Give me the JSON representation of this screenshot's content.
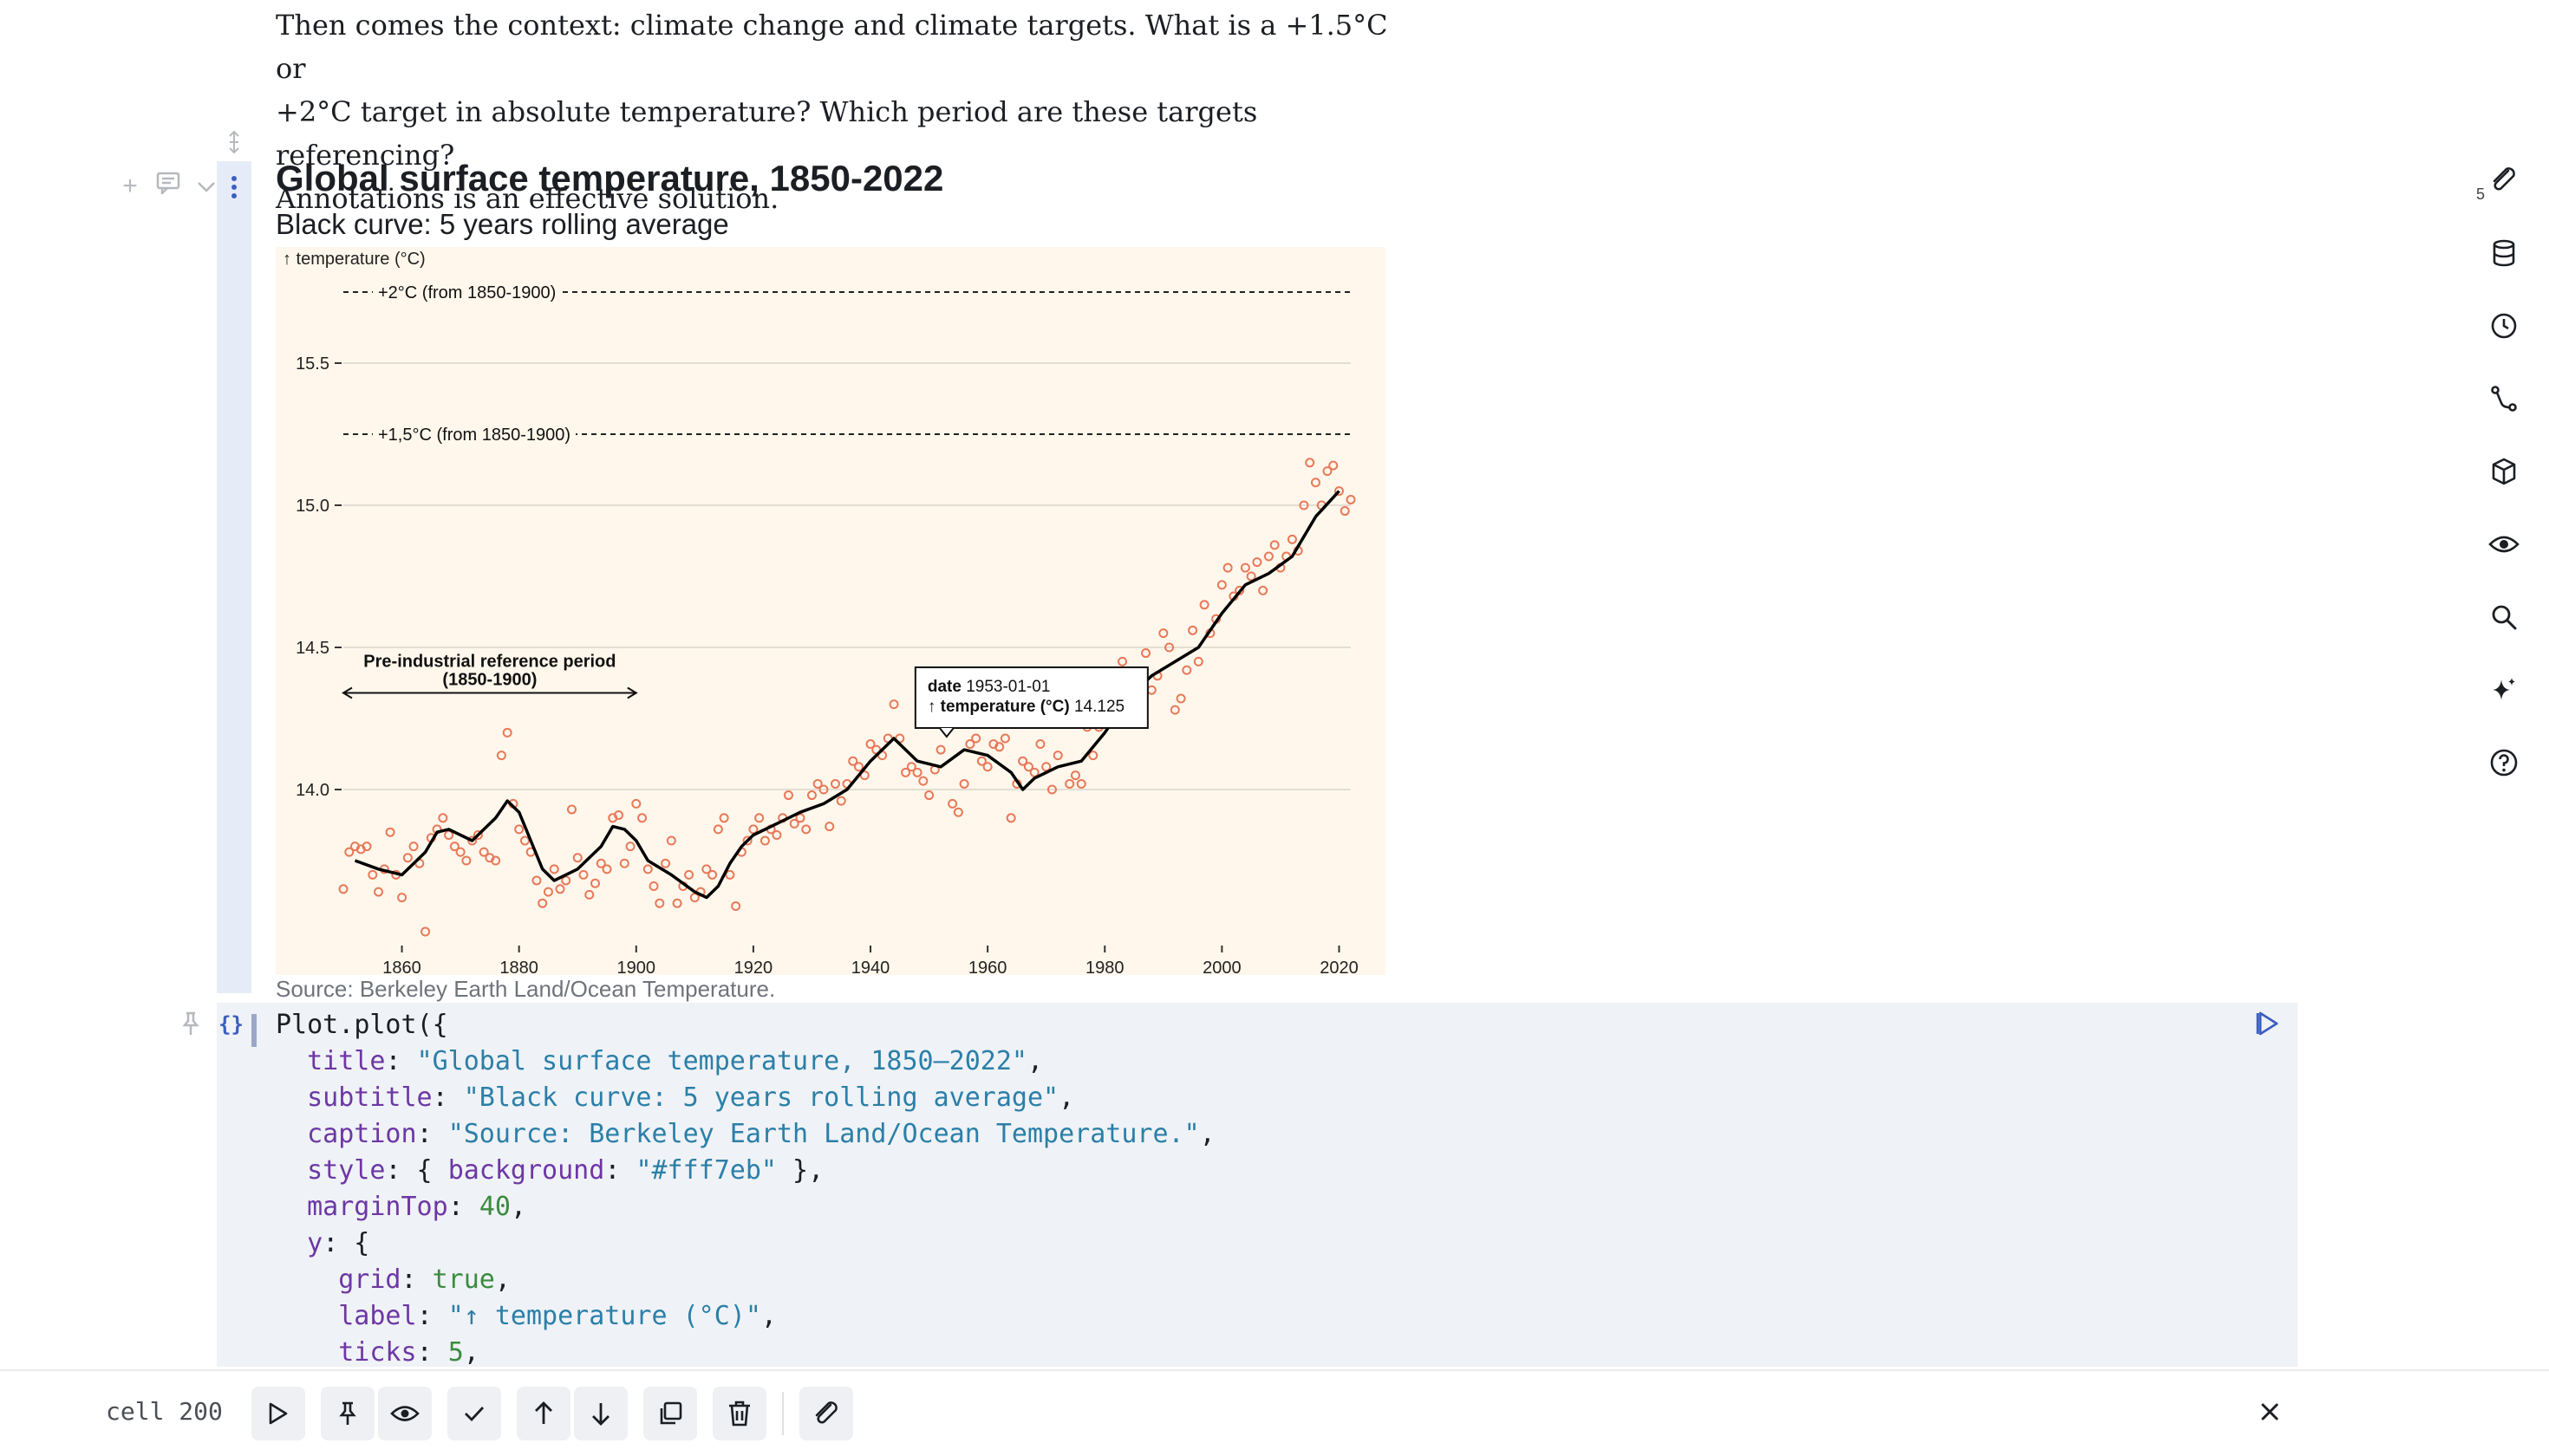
{
  "prose": {
    "line1": "Then comes the context: climate change and climate targets. What is a +1.5°C or",
    "line2": "+2°C target in absolute temperature? Which period are these targets referencing?",
    "line3": "Annotations is an effective solution."
  },
  "cell": {
    "title": "Global surface temperature, 1850-2022",
    "subtitle": "Black curve: 5 years rolling average",
    "caption": "Source: Berkeley Earth Land/Ocean Temperature."
  },
  "chart_data": {
    "type": "scatter",
    "title": "Global surface temperature, 1850-2022",
    "subtitle": "Black curve: 5 years rolling average",
    "caption": "Source: Berkeley Earth Land/Ocean Temperature.",
    "background": "#fff7eb",
    "ylabel": "↑ temperature (°C)",
    "xlabel": "",
    "xlim": [
      1850,
      2022
    ],
    "ylim": [
      13.5,
      15.75
    ],
    "grid": true,
    "xticks": [
      1860,
      1880,
      1900,
      1920,
      1940,
      1960,
      1980,
      2000,
      2020
    ],
    "yticks": [
      14.0,
      14.5,
      15.0,
      15.5
    ],
    "points_color": "#e8795a",
    "line_color": "#000000",
    "annual_points": {
      "x": [
        1850,
        1851,
        1852,
        1853,
        1854,
        1855,
        1856,
        1857,
        1858,
        1859,
        1860,
        1861,
        1862,
        1863,
        1864,
        1865,
        1866,
        1867,
        1868,
        1869,
        1870,
        1871,
        1872,
        1873,
        1874,
        1875,
        1876,
        1877,
        1878,
        1879,
        1880,
        1881,
        1882,
        1883,
        1884,
        1885,
        1886,
        1887,
        1888,
        1889,
        1890,
        1891,
        1892,
        1893,
        1894,
        1895,
        1896,
        1897,
        1898,
        1899,
        1900,
        1901,
        1902,
        1903,
        1904,
        1905,
        1906,
        1907,
        1908,
        1909,
        1910,
        1911,
        1912,
        1913,
        1914,
        1915,
        1916,
        1917,
        1918,
        1919,
        1920,
        1921,
        1922,
        1923,
        1924,
        1925,
        1926,
        1927,
        1928,
        1929,
        1930,
        1931,
        1932,
        1933,
        1934,
        1935,
        1936,
        1937,
        1938,
        1939,
        1940,
        1941,
        1942,
        1943,
        1944,
        1945,
        1946,
        1947,
        1948,
        1949,
        1950,
        1951,
        1952,
        1953,
        1954,
        1955,
        1956,
        1957,
        1958,
        1959,
        1960,
        1961,
        1962,
        1963,
        1964,
        1965,
        1966,
        1967,
        1968,
        1969,
        1970,
        1971,
        1972,
        1973,
        1974,
        1975,
        1976,
        1977,
        1978,
        1979,
        1980,
        1981,
        1982,
        1983,
        1984,
        1985,
        1986,
        1987,
        1988,
        1989,
        1990,
        1991,
        1992,
        1993,
        1994,
        1995,
        1996,
        1997,
        1998,
        1999,
        2000,
        2001,
        2002,
        2003,
        2004,
        2005,
        2006,
        2007,
        2008,
        2009,
        2010,
        2011,
        2012,
        2013,
        2014,
        2015,
        2016,
        2017,
        2018,
        2019,
        2020,
        2021,
        2022
      ],
      "y": [
        13.65,
        13.78,
        13.8,
        13.79,
        13.8,
        13.7,
        13.64,
        13.72,
        13.85,
        13.7,
        13.62,
        13.76,
        13.8,
        13.74,
        13.5,
        13.83,
        13.86,
        13.9,
        13.84,
        13.8,
        13.78,
        13.75,
        13.82,
        13.84,
        13.78,
        13.76,
        13.75,
        14.12,
        14.2,
        13.95,
        13.86,
        13.82,
        13.78,
        13.68,
        13.6,
        13.64,
        13.72,
        13.65,
        13.68,
        13.93,
        13.76,
        13.7,
        13.63,
        13.67,
        13.74,
        13.72,
        13.9,
        13.91,
        13.74,
        13.8,
        13.95,
        13.9,
        13.72,
        13.66,
        13.6,
        13.74,
        13.82,
        13.6,
        13.66,
        13.7,
        13.62,
        13.64,
        13.72,
        13.7,
        13.86,
        13.9,
        13.7,
        13.59,
        13.78,
        13.82,
        13.86,
        13.9,
        13.82,
        13.86,
        13.84,
        13.9,
        13.98,
        13.88,
        13.9,
        13.86,
        13.98,
        14.02,
        14.0,
        13.87,
        14.02,
        13.96,
        14.02,
        14.1,
        14.08,
        14.05,
        14.16,
        14.14,
        14.12,
        14.18,
        14.3,
        14.18,
        14.06,
        14.08,
        14.06,
        14.03,
        13.98,
        14.07,
        14.14,
        14.25,
        13.95,
        13.92,
        14.02,
        14.16,
        14.18,
        14.1,
        14.08,
        14.16,
        14.15,
        14.18,
        13.9,
        14.02,
        14.1,
        14.08,
        14.06,
        14.16,
        14.08,
        14.0,
        14.12,
        14.25,
        14.02,
        14.05,
        14.02,
        14.22,
        14.12,
        14.22,
        14.3,
        14.38,
        14.28,
        14.45,
        14.35,
        14.3,
        14.4,
        14.48,
        14.35,
        14.4,
        14.55,
        14.5,
        14.28,
        14.32,
        14.42,
        14.56,
        14.45,
        14.65,
        14.55,
        14.6,
        14.72,
        14.78,
        14.68,
        14.7,
        14.78,
        14.75,
        14.8,
        14.7,
        14.82,
        14.86,
        14.78,
        14.82,
        14.88,
        14.84,
        15.0,
        15.15,
        15.08,
        15.0,
        15.12,
        15.14,
        15.05,
        14.98,
        15.02
      ]
    },
    "rolling_average": {
      "x": [
        1852,
        1856,
        1860,
        1864,
        1866,
        1868,
        1872,
        1876,
        1878,
        1880,
        1882,
        1884,
        1886,
        1888,
        1890,
        1894,
        1896,
        1898,
        1900,
        1902,
        1906,
        1910,
        1912,
        1914,
        1916,
        1918,
        1920,
        1924,
        1928,
        1932,
        1936,
        1940,
        1944,
        1948,
        1952,
        1956,
        1960,
        1964,
        1966,
        1968,
        1972,
        1976,
        1980,
        1984,
        1988,
        1992,
        1996,
        2000,
        2004,
        2008,
        2012,
        2016,
        2020
      ],
      "y": [
        13.75,
        13.72,
        13.7,
        13.78,
        13.85,
        13.86,
        13.82,
        13.9,
        13.96,
        13.92,
        13.82,
        13.72,
        13.68,
        13.7,
        13.72,
        13.8,
        13.87,
        13.86,
        13.82,
        13.75,
        13.7,
        13.64,
        13.62,
        13.66,
        13.74,
        13.8,
        13.84,
        13.88,
        13.92,
        13.95,
        14.0,
        14.1,
        14.18,
        14.1,
        14.08,
        14.14,
        14.12,
        14.06,
        14.0,
        14.04,
        14.08,
        14.1,
        14.2,
        14.32,
        14.4,
        14.45,
        14.5,
        14.62,
        14.72,
        14.76,
        14.82,
        14.96,
        15.05
      ]
    },
    "annotations": [
      {
        "type": "hline",
        "y": 15.75,
        "label": "+2°C (from 1850-1900)"
      },
      {
        "type": "hline",
        "y": 15.25,
        "label": "+1,5°C (from 1850-1900)"
      },
      {
        "type": "range",
        "x0": 1850,
        "x1": 1900,
        "y": 14.34,
        "label1": "Pre-industrial reference period",
        "label2": "(1850-1900)"
      }
    ],
    "tooltip": {
      "x": 1953,
      "date_key": "date",
      "date_value": "1953-01-01",
      "temp_key": "↑ temperature (°C)",
      "temp_value": "14.125"
    }
  },
  "code": {
    "line1_obj": "Plot",
    "line1_fn": "plot",
    "line1_open": "({",
    "title_key": "title",
    "title_val": "\"Global surface temperature, 1850–2022\"",
    "subtitle_key": "subtitle",
    "subtitle_val": "\"Black curve: 5 years rolling average\"",
    "caption_key": "caption",
    "caption_val": "\"Source: Berkeley Earth Land/Ocean Temperature.\"",
    "style_key": "style",
    "style_bg_key": "background",
    "style_bg_val": "\"#fff7eb\"",
    "margintop_key": "marginTop",
    "margintop_val": "40",
    "y_key": "y",
    "grid_key": "grid",
    "grid_val": "true",
    "label_key": "label",
    "label_val": "\"↑ temperature (°C)\"",
    "ticks_key": "ticks",
    "ticks_val": "5"
  },
  "right_sidebar": {
    "attachment_count": "5",
    "icons": [
      "paperclip-icon",
      "database-icon",
      "history-icon",
      "dependency-icon",
      "package-icon",
      "eye-icon",
      "search-icon",
      "sparkle-icon",
      "help-icon"
    ]
  },
  "toolbar": {
    "cell_label": "cell 200"
  }
}
